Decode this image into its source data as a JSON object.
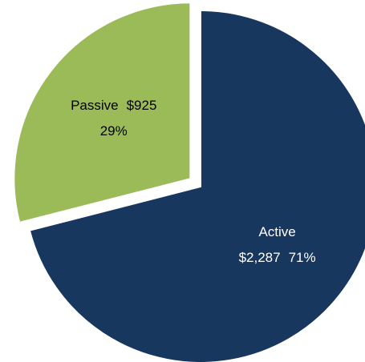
{
  "chart_data": {
    "type": "pie",
    "categories": [
      "Active",
      "Passive"
    ],
    "values": [
      71,
      29
    ],
    "value_labels": [
      "71%",
      "29%"
    ],
    "amounts": [
      2287,
      925
    ],
    "amount_labels": [
      "$2,287",
      "$925"
    ],
    "colors": [
      "#17375e",
      "#9bbb59"
    ],
    "label_colors": [
      "#ffffff",
      "#000000"
    ],
    "exploded": [
      false,
      true
    ]
  }
}
